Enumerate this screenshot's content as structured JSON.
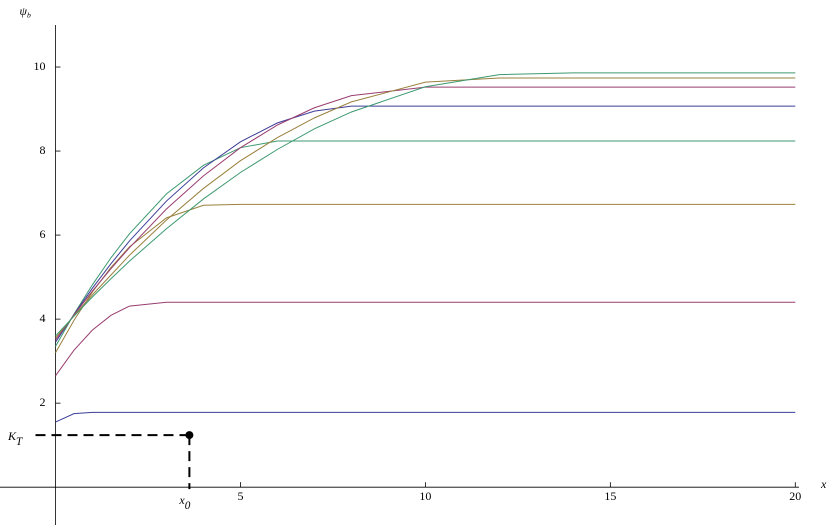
{
  "chart_data": {
    "type": "line",
    "x_label": "x",
    "y_label": "ψ",
    "y_label_sub": "b",
    "x": [
      0,
      0.5,
      1,
      1.5,
      2,
      3,
      4,
      5,
      6,
      7,
      8,
      10,
      12,
      14,
      17,
      20
    ],
    "series": [
      {
        "color": "#3d3d99",
        "values": [
          1.55,
          1.75,
          1.78,
          1.78,
          1.78,
          1.78,
          1.78,
          1.78,
          1.78,
          1.78,
          1.78,
          1.78,
          1.78,
          1.78,
          1.78,
          1.78
        ]
      },
      {
        "color": "#993d70",
        "values": [
          2.65,
          3.26,
          3.74,
          4.09,
          4.31,
          4.4,
          4.4,
          4.4,
          4.4,
          4.4,
          4.4,
          4.4,
          4.4,
          4.4,
          4.4,
          4.4
        ]
      },
      {
        "color": "#99803d",
        "values": [
          3.2,
          3.97,
          4.65,
          5.23,
          5.72,
          6.41,
          6.71,
          6.73,
          6.73,
          6.73,
          6.73,
          6.73,
          6.73,
          6.73,
          6.73,
          6.73
        ]
      },
      {
        "color": "#3d9970",
        "values": [
          3.35,
          4.12,
          4.82,
          5.46,
          6.03,
          6.98,
          7.66,
          8.08,
          8.24,
          8.24,
          8.24,
          8.24,
          8.24,
          8.24,
          8.24,
          8.24
        ]
      },
      {
        "color": "#3d3d99",
        "values": [
          3.45,
          4.11,
          4.74,
          5.32,
          5.86,
          6.81,
          7.6,
          8.22,
          8.67,
          8.95,
          9.07,
          9.07,
          9.07,
          9.07,
          9.07,
          9.07
        ]
      },
      {
        "color": "#993d70",
        "values": [
          3.5,
          4.1,
          4.67,
          5.2,
          5.7,
          6.62,
          7.41,
          8.08,
          8.62,
          9.03,
          9.32,
          9.52,
          9.52,
          9.52,
          9.52,
          9.52
        ]
      },
      {
        "color": "#99803d",
        "values": [
          3.55,
          4.08,
          4.58,
          5.05,
          5.52,
          6.36,
          7.11,
          7.77,
          8.32,
          8.79,
          9.17,
          9.64,
          9.74,
          9.74,
          9.74,
          9.74
        ]
      },
      {
        "color": "#3d9970",
        "values": [
          3.6,
          4.07,
          4.53,
          4.96,
          5.38,
          6.15,
          6.86,
          7.49,
          8.04,
          8.53,
          8.93,
          9.53,
          9.82,
          9.86,
          9.86,
          9.86
        ]
      }
    ],
    "xlim": [
      -1.5,
      20.1
    ],
    "ylim": [
      -0.9,
      11
    ],
    "xticks": [
      5,
      10,
      15,
      20
    ],
    "yticks": [
      2,
      4,
      6,
      8,
      10
    ],
    "annotation": {
      "x": 3.62,
      "y": 1.24,
      "y_label": "K",
      "y_label_sub": "T",
      "x_label": "x",
      "x_label_sub": "0"
    }
  }
}
